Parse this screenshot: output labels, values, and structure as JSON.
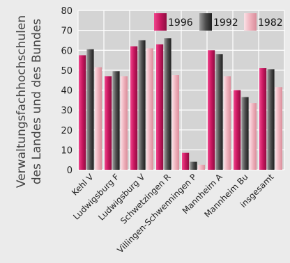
{
  "chart_data": {
    "type": "bar",
    "ylabel_lines": [
      "Verwaltungsfachhochschulen",
      "des Landes und des Bundes"
    ],
    "categories": [
      "Kehl V",
      "Ludwigsburg F",
      "Ludwigsburg V",
      "Schwetzingen R",
      "Villingen-Schwenningen P",
      "Mannheim A",
      "Mannheim Bu",
      "insgesamt"
    ],
    "series": [
      {
        "name": "1996",
        "values": [
          57.5,
          47,
          62,
          63,
          8.5,
          60,
          40,
          51
        ]
      },
      {
        "name": "1992",
        "values": [
          60.5,
          49.5,
          65,
          66,
          4,
          58,
          36.5,
          50.5
        ]
      },
      {
        "name": "1982",
        "values": [
          51.5,
          47,
          61,
          47.5,
          2.5,
          47,
          33.5,
          41.5
        ]
      }
    ],
    "ylim": [
      0,
      80
    ],
    "yticks": [
      0,
      10,
      20,
      30,
      40,
      50,
      60,
      70,
      80
    ],
    "grid": true,
    "legend_position": "top-right",
    "colors": {
      "background": "#ebebeb",
      "plot_background": "#d4d4d4",
      "grid": "#ffffff",
      "series": [
        "#c8175f",
        "#4e4e4e",
        "#efb1bc"
      ]
    }
  }
}
